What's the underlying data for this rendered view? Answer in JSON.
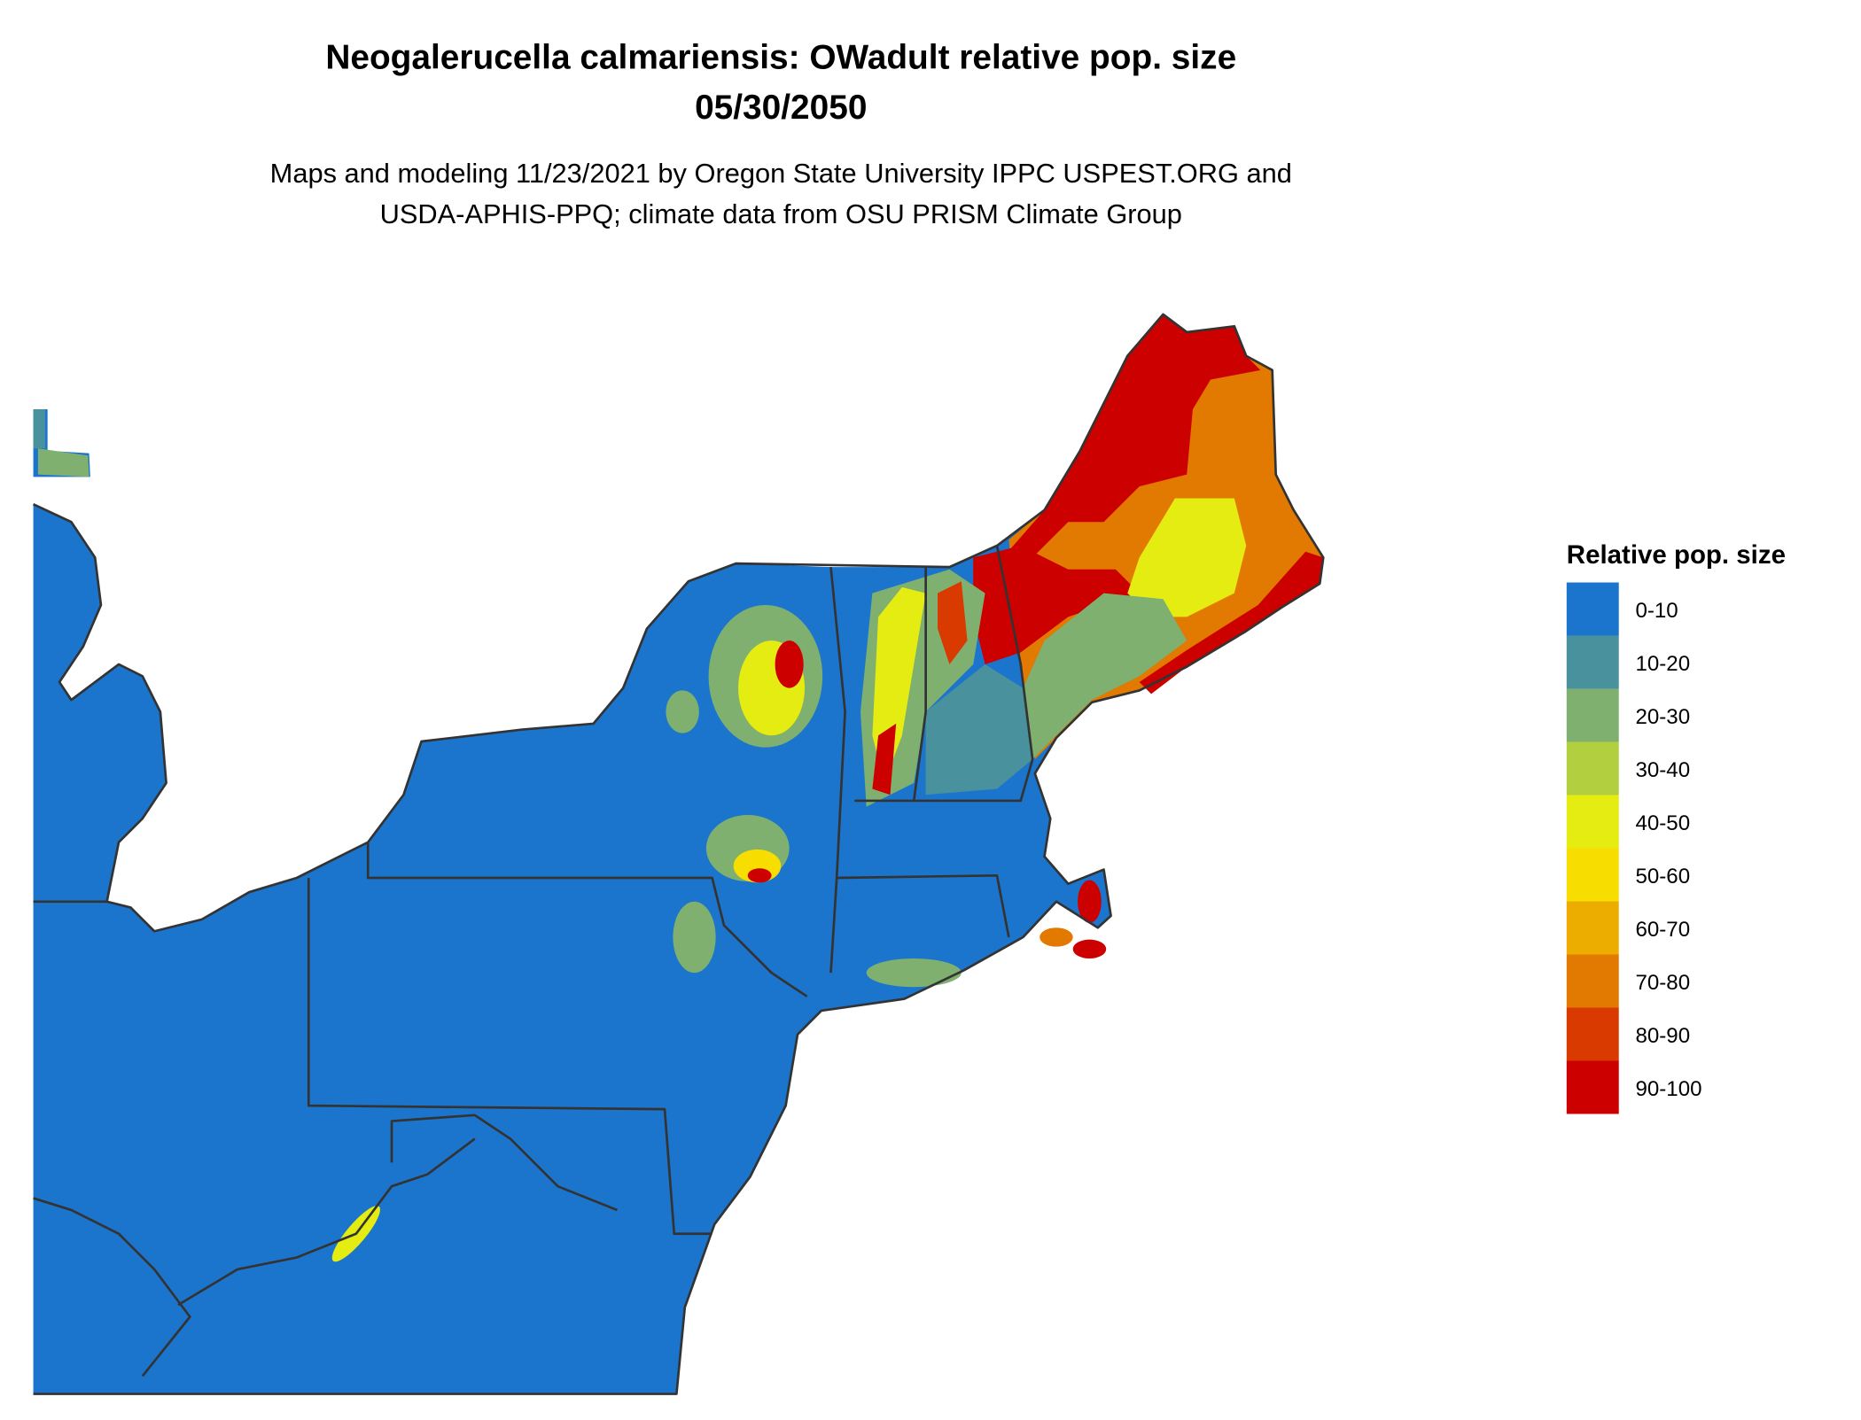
{
  "header": {
    "title": "Neogalerucella calmariensis: OWadult relative pop. size",
    "date": "05/30/2050",
    "subtitle": [
      "Maps and modeling 11/23/2021 by Oregon State University IPPC USPEST.ORG and",
      "USDA-APHIS-PPQ; climate data from OSU PRISM Climate Group"
    ]
  },
  "legend": {
    "title": "Relative pop. size",
    "items": [
      {
        "label": "0-10",
        "color": "#1c75cd"
      },
      {
        "label": "10-20",
        "color": "#4a919e"
      },
      {
        "label": "20-30",
        "color": "#7fb06f"
      },
      {
        "label": "30-40",
        "color": "#b1cf3f"
      },
      {
        "label": "40-50",
        "color": "#e4ec12"
      },
      {
        "label": "50-60",
        "color": "#f7dd00"
      },
      {
        "label": "60-70",
        "color": "#edad00"
      },
      {
        "label": "70-80",
        "color": "#e27900"
      },
      {
        "label": "80-90",
        "color": "#d93a00"
      },
      {
        "label": "90-100",
        "color": "#cd0000"
      }
    ]
  }
}
